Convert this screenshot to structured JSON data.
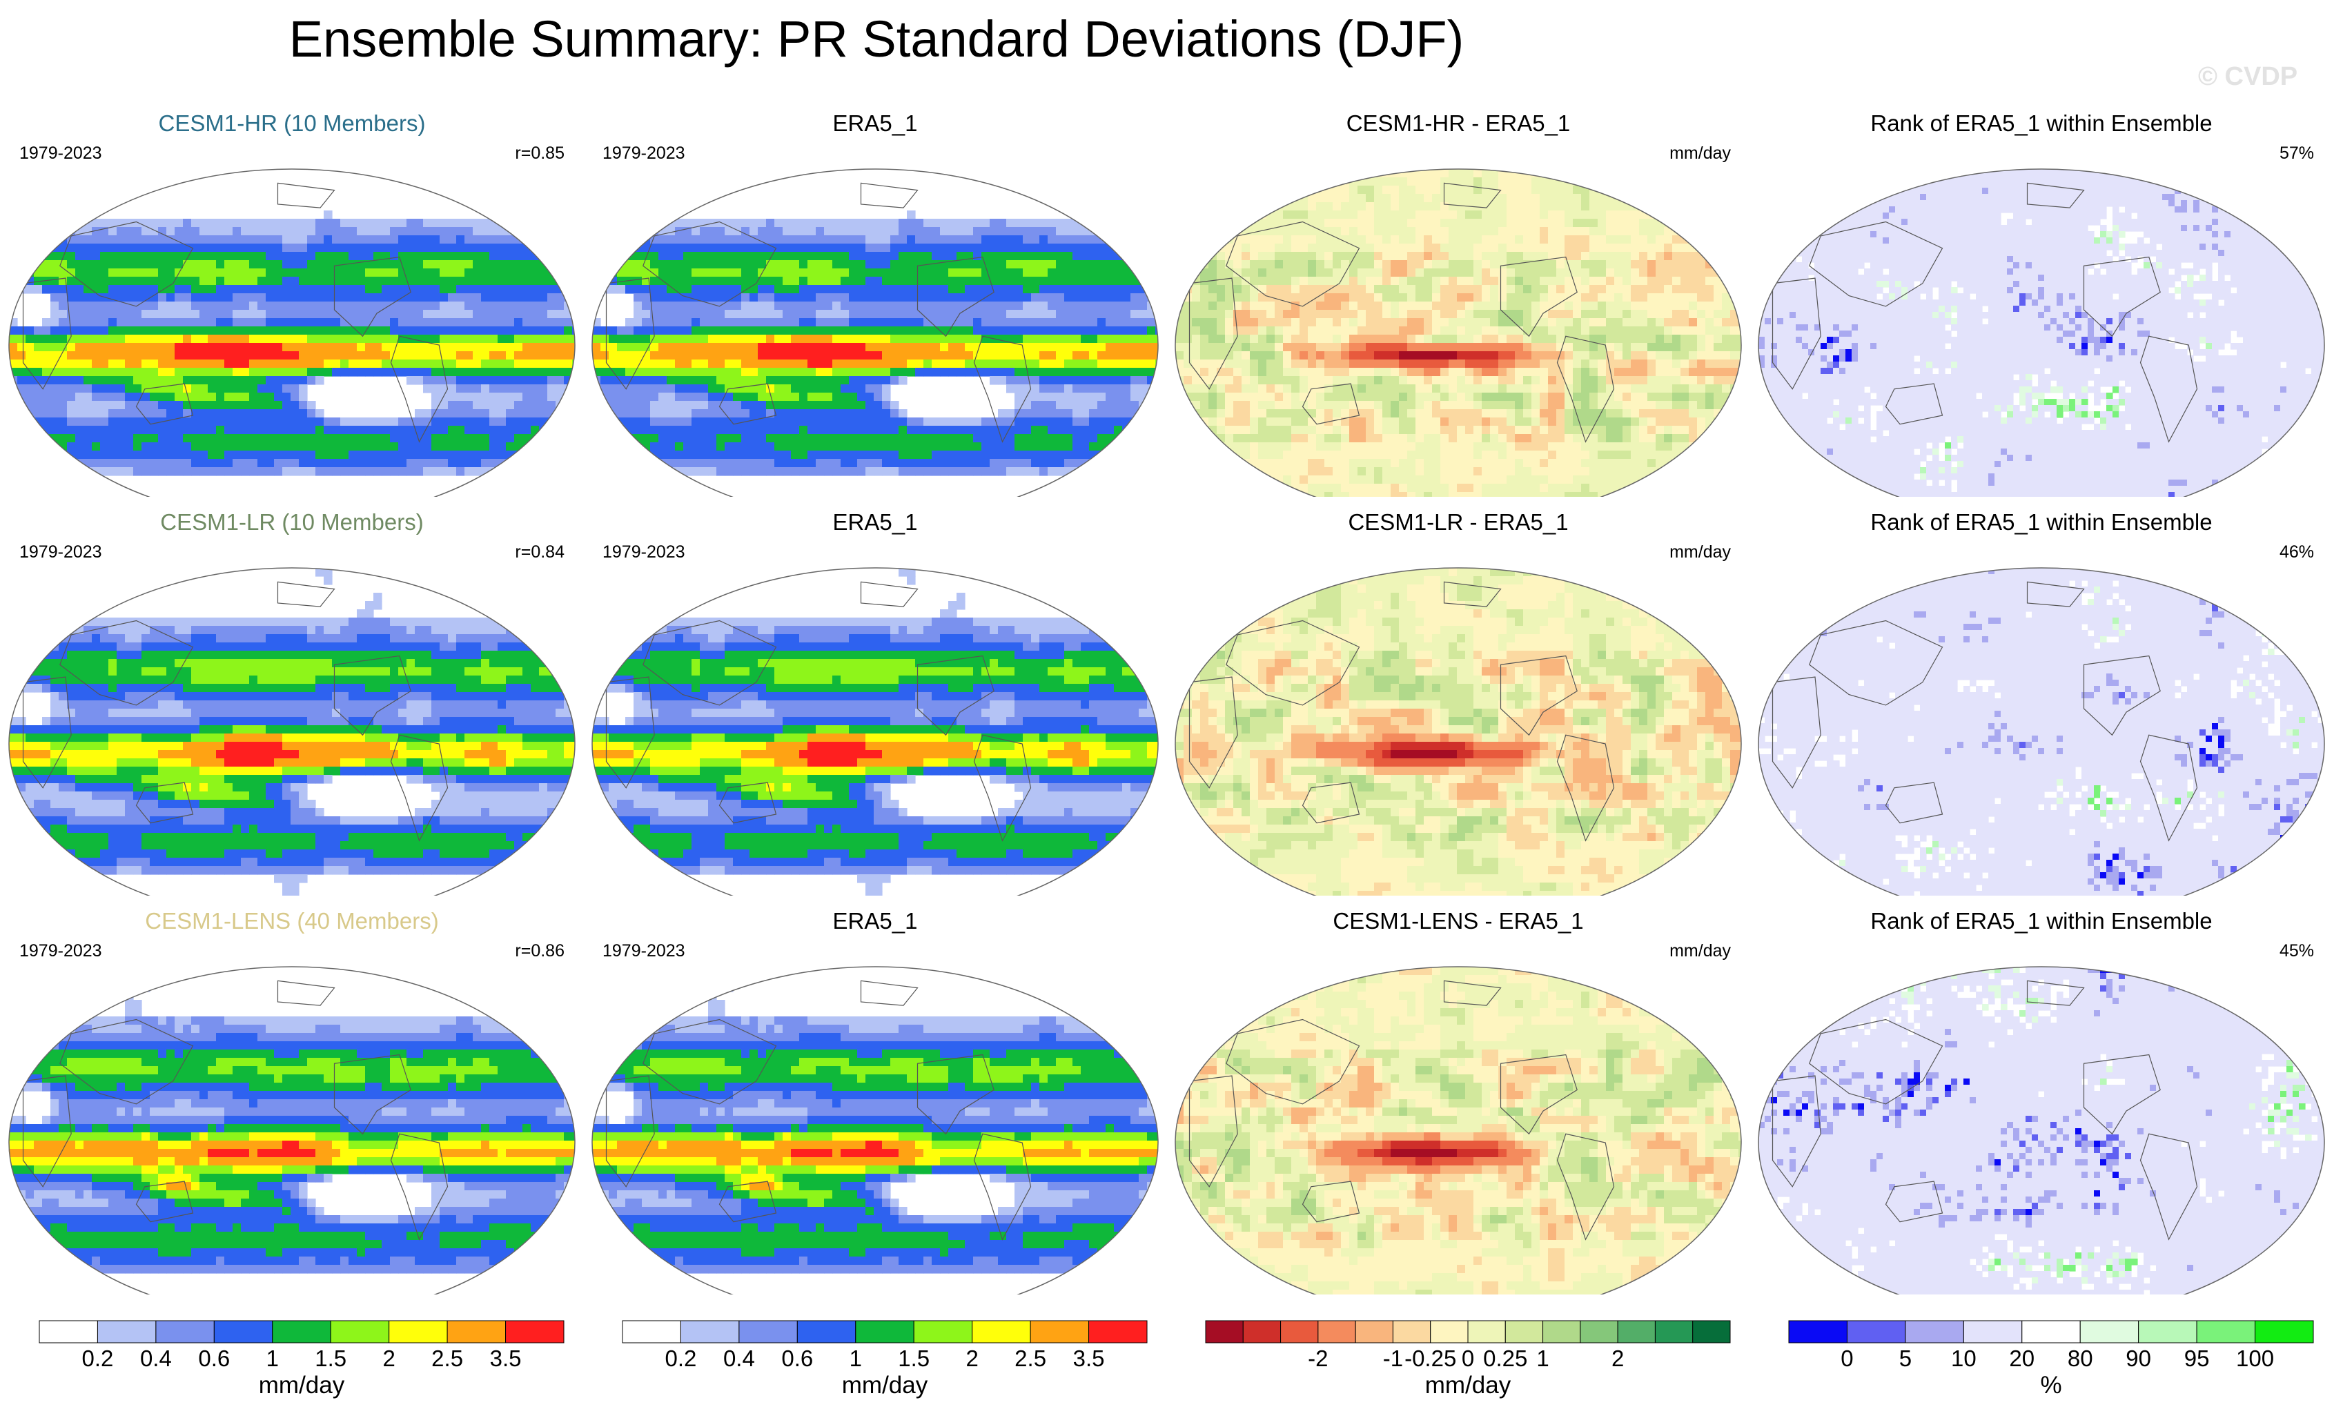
{
  "title": "Ensemble Summary: PR Standard Deviations (DJF)",
  "watermark": "© CVDP",
  "rows": [
    {
      "panels": [
        {
          "title": "CESM1-HR (10 Members)",
          "title_color": "#2a6e8a",
          "left": "1979-2023",
          "right": "r=0.85",
          "kind": "std"
        },
        {
          "title": "ERA5_1",
          "title_color": "#000000",
          "left": "1979-2023",
          "right": "",
          "kind": "std"
        },
        {
          "title": "CESM1-HR - ERA5_1",
          "title_color": "#000000",
          "left": "",
          "right": "mm/day",
          "kind": "diff"
        },
        {
          "title": "Rank of ERA5_1 within Ensemble",
          "title_color": "#000000",
          "left": "",
          "right": "57%",
          "kind": "rank"
        }
      ]
    },
    {
      "panels": [
        {
          "title": "CESM1-LR (10 Members)",
          "title_color": "#6f8a62",
          "left": "1979-2023",
          "right": "r=0.84",
          "kind": "std"
        },
        {
          "title": "ERA5_1",
          "title_color": "#000000",
          "left": "1979-2023",
          "right": "",
          "kind": "std"
        },
        {
          "title": "CESM1-LR - ERA5_1",
          "title_color": "#000000",
          "left": "",
          "right": "mm/day",
          "kind": "diff"
        },
        {
          "title": "Rank of ERA5_1 within Ensemble",
          "title_color": "#000000",
          "left": "",
          "right": "46%",
          "kind": "rank"
        }
      ]
    },
    {
      "panels": [
        {
          "title": "CESM1-LENS (40 Members)",
          "title_color": "#d8c98a",
          "left": "1979-2023",
          "right": "r=0.86",
          "kind": "std"
        },
        {
          "title": "ERA5_1",
          "title_color": "#000000",
          "left": "1979-2023",
          "right": "",
          "kind": "std"
        },
        {
          "title": "CESM1-LENS - ERA5_1",
          "title_color": "#000000",
          "left": "",
          "right": "mm/day",
          "kind": "diff"
        },
        {
          "title": "Rank of ERA5_1 within Ensemble",
          "title_color": "#000000",
          "left": "",
          "right": "45%",
          "kind": "rank"
        }
      ]
    }
  ],
  "colorbars": [
    {
      "name": "std-colorbar-1",
      "colors": [
        "#ffffff",
        "#b4c3f5",
        "#7a91ee",
        "#2e62f0",
        "#0fb83a",
        "#8ef51a",
        "#ffff0a",
        "#ffa313",
        "#ff1f1f"
      ],
      "labels": [
        "0.2",
        "0.4",
        "0.6",
        "1",
        "1.5",
        "2",
        "2.5",
        "3.5"
      ],
      "units": "mm/day"
    },
    {
      "name": "std-colorbar-2",
      "colors": [
        "#ffffff",
        "#b4c3f5",
        "#7a91ee",
        "#2e62f0",
        "#0fb83a",
        "#8ef51a",
        "#ffff0a",
        "#ffa313",
        "#ff1f1f"
      ],
      "labels": [
        "0.2",
        "0.4",
        "0.6",
        "1",
        "1.5",
        "2",
        "2.5",
        "3.5"
      ],
      "units": "mm/day"
    },
    {
      "name": "diff-colorbar",
      "colors": [
        "#a50d24",
        "#cf2f2a",
        "#e85a3d",
        "#f48b5d",
        "#f9b57d",
        "#fbd9a1",
        "#fef5c0",
        "#eef5b8",
        "#d2e89c",
        "#b0d98a",
        "#85c77a",
        "#53ae68",
        "#259855",
        "#066e3a"
      ],
      "labels": [
        "-2",
        "-1",
        "-0.25",
        "0",
        "0.25",
        "1",
        "2"
      ],
      "label_positions": [
        3,
        5,
        6,
        7,
        8,
        9,
        11
      ],
      "units": "mm/day"
    },
    {
      "name": "rank-colorbar",
      "colors": [
        "#0a0af5",
        "#6060f2",
        "#a9a9f0",
        "#e3e3fb",
        "#ffffff",
        "#e0fbe0",
        "#b8f8b8",
        "#7af27a",
        "#12ec12"
      ],
      "labels": [
        "0",
        "5",
        "10",
        "20",
        "80",
        "90",
        "95",
        "100"
      ],
      "units": "%"
    }
  ],
  "std_levels": [
    0.2,
    0.4,
    0.6,
    1,
    1.5,
    2,
    2.5,
    3.5
  ],
  "diff_levels": [
    -2,
    -1.5,
    -1,
    -0.5,
    -0.25,
    -0.1,
    0,
    0.1,
    0.25,
    0.5,
    1,
    1.5,
    2
  ],
  "rank_levels": [
    0,
    5,
    10,
    20,
    80,
    90,
    95,
    100
  ]
}
